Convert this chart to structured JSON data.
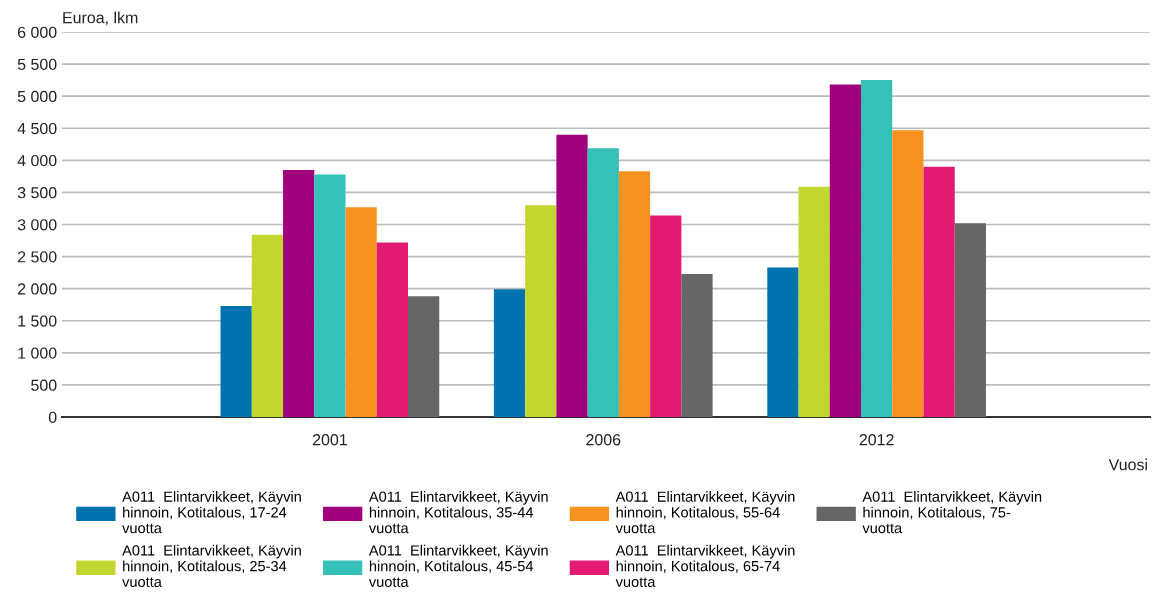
{
  "chart_data": {
    "type": "bar",
    "ylabel": "Euroa, lkm",
    "xlabel": "Vuosi",
    "categories": [
      "2001",
      "2006",
      "2012"
    ],
    "series": [
      {
        "name": "A011  Elintarvikkeet, Käyvin hinnoin, Kotitalous, 17-24 vuotta",
        "color": "#0072b0",
        "values": [
          1730,
          1990,
          2330
        ]
      },
      {
        "name": "A011  Elintarvikkeet, Käyvin hinnoin, Kotitalous, 25-34 vuotta",
        "color": "#c1d72f",
        "values": [
          2840,
          3300,
          3590
        ]
      },
      {
        "name": "A011  Elintarvikkeet, Käyvin hinnoin, Kotitalous, 35-44 vuotta",
        "color": "#a0007b",
        "values": [
          3850,
          4400,
          5180
        ]
      },
      {
        "name": "A011  Elintarvikkeet, Käyvin hinnoin, Kotitalous, 45-54 vuotta",
        "color": "#35c0b8",
        "values": [
          3780,
          4190,
          5250
        ]
      },
      {
        "name": "A011  Elintarvikkeet, Käyvin hinnoin, Kotitalous, 55-64 vuotta",
        "color": "#f79220",
        "values": [
          3270,
          3830,
          4470
        ]
      },
      {
        "name": "A011  Elintarvikkeet, Käyvin hinnoin, Kotitalous, 65-74 vuotta",
        "color": "#e31a72",
        "values": [
          2720,
          3140,
          3900
        ]
      },
      {
        "name": "A011  Elintarvikkeet, Käyvin hinnoin, Kotitalous, 75- vuotta",
        "color": "#666666",
        "values": [
          1880,
          2230,
          3020
        ]
      }
    ],
    "ylim": [
      0,
      6000
    ],
    "yticks": [
      0,
      500,
      {
        "value": 1000,
        "label": "1 000"
      },
      {
        "value": 1500,
        "label": "1 500"
      },
      {
        "value": 2000,
        "label": "2 000"
      },
      {
        "value": 2500,
        "label": "2 500"
      },
      {
        "value": 3000,
        "label": "3 000"
      },
      {
        "value": 3500,
        "label": "3 500"
      },
      {
        "value": 4000,
        "label": "4 000"
      },
      {
        "value": 4500,
        "label": "4 500"
      },
      {
        "value": 5000,
        "label": "5 000"
      },
      {
        "value": 5500,
        "label": "5 500"
      },
      {
        "value": 6000,
        "label": "6 000"
      }
    ],
    "grid": "y",
    "legend": "bottom"
  }
}
